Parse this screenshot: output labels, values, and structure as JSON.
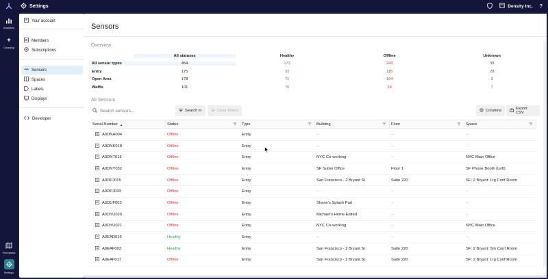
{
  "topbar": {
    "title": "Settings",
    "org": "Density Inc.",
    "help": "?"
  },
  "rail": {
    "items": [
      {
        "label": "Analytics",
        "icon": "analytics-icon"
      },
      {
        "label": "Cleaning",
        "icon": "cleaning-icon"
      },
      {
        "label": "Floorplans",
        "icon": "floorplans-icon"
      },
      {
        "label": "Settings",
        "icon": "gear-icon"
      }
    ]
  },
  "nav": {
    "items": [
      {
        "label": "Your account",
        "icon": "account-icon"
      },
      {
        "label": "Members",
        "icon": "members-icon"
      },
      {
        "label": "Subscriptions",
        "icon": "subscriptions-icon"
      },
      {
        "label": "Sensors",
        "icon": "sensors-icon"
      },
      {
        "label": "Spaces",
        "icon": "spaces-icon"
      },
      {
        "label": "Labels",
        "icon": "labels-icon"
      },
      {
        "label": "Displays",
        "icon": "displays-icon"
      },
      {
        "label": "Developer",
        "icon": "code-icon"
      }
    ]
  },
  "main": {
    "title": "Sensors",
    "overview_label": "Overview",
    "overview": {
      "headers": [
        "All statuses",
        "Healthy",
        "Offline",
        "Unknown"
      ],
      "rows": [
        {
          "name": "All sensor types",
          "all": "454",
          "healthy": "173",
          "offline": "243",
          "unknown": "38"
        },
        {
          "name": "Entry",
          "all": "175",
          "healthy": "32",
          "offline": "115",
          "unknown": "28"
        },
        {
          "name": "Open Area",
          "all": "178",
          "healthy": "71",
          "offline": "104",
          "unknown": "3"
        },
        {
          "name": "Waffle",
          "all": "101",
          "healthy": "70",
          "offline": "24",
          "unknown": "7"
        }
      ]
    },
    "all_sensors_label": "All Sensors",
    "search": {
      "placeholder": "Search sensors..."
    },
    "search_button": "Search in",
    "clear_button": "Clear Filters",
    "columns_button": "Columns",
    "export_button": "Export CSV",
    "grid": {
      "headers": [
        "Serial Number",
        "Status",
        "Type",
        "Building",
        "Floor",
        "Space"
      ],
      "sort_indicator": "▲",
      "rows": [
        {
          "serial": "A0DNA004",
          "status": "Offline",
          "type": "Entry",
          "building": "--",
          "floor": "--",
          "space": "--"
        },
        {
          "serial": "A0DNK018",
          "status": "Offline",
          "type": "Entry",
          "building": "--",
          "floor": "--",
          "space": "--"
        },
        {
          "serial": "A0DNT016",
          "status": "Offline",
          "type": "Entry",
          "building": "NYC Co-working",
          "floor": "--",
          "space": "NYC Main Office"
        },
        {
          "serial": "A0DNY032",
          "status": "Offline",
          "type": "Entry",
          "building": "SF Sutter Office",
          "floor": "Floor 1",
          "space": "SF Phone Booth (Left)"
        },
        {
          "serial": "A0DPJ015",
          "status": "Offline",
          "type": "Entry",
          "building": "San Francisco - 2 Bryant St",
          "floor": "Suite 220",
          "space": "SF: 2 Bryant: Lrg Conf Room"
        },
        {
          "serial": "A0DPJ033",
          "status": "Offline",
          "type": "Entry",
          "building": "--",
          "floor": "--",
          "space": "--"
        },
        {
          "serial": "A0DUF003",
          "status": "Offline",
          "type": "Entry",
          "building": "Shane's Splash Pad",
          "floor": "--",
          "space": "--"
        },
        {
          "serial": "A0DYU020",
          "status": "Offline",
          "type": "Entry",
          "building": "Michael's Home Edited",
          "floor": "--",
          "space": "--"
        },
        {
          "serial": "A0DYU021",
          "status": "Offline",
          "type": "Entry",
          "building": "NYC Co-working",
          "floor": "--",
          "space": "NYC Main Office"
        },
        {
          "serial": "A0EAD016",
          "status": "Healthy",
          "type": "Entry",
          "building": "--",
          "floor": "--",
          "space": "--"
        },
        {
          "serial": "A0EAF003",
          "status": "Healthy",
          "type": "Entry",
          "building": "San Francisco - 2 Bryant St",
          "floor": "Suite 220",
          "space": "SF: 2 Bryant: Sm Conf Room"
        },
        {
          "serial": "A0EAF017",
          "status": "Offline",
          "type": "Entry",
          "building": "San Francisco - 2 Bryant St",
          "floor": "Suite 220",
          "space": "SF: 2 Bryant: Lrg Conf Room"
        }
      ]
    }
  },
  "colors": {
    "healthy": "#2a9d4a",
    "offline": "#d33a2c",
    "accent": "#2f7c8c",
    "topbar": "#13163a"
  }
}
